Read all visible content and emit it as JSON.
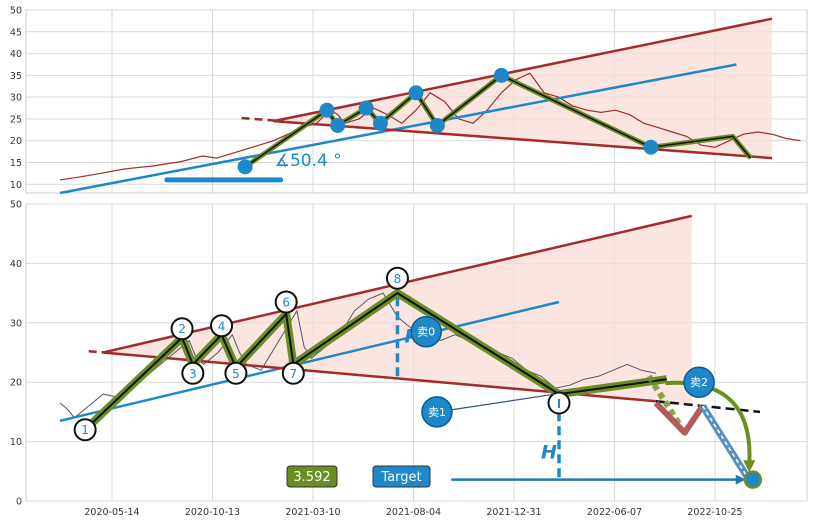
{
  "chart_data": [
    {
      "type": "line",
      "panel": "top",
      "title": "",
      "xlabel": "",
      "ylabel": "",
      "ylim": [
        8,
        50
      ],
      "y_ticks": [
        10,
        15,
        20,
        25,
        30,
        35,
        40,
        45,
        50
      ],
      "grid": true,
      "price_color": "#a52a2a",
      "price_series": [
        [
          0,
          11
        ],
        [
          0.02,
          11.5
        ],
        [
          0.05,
          12.3
        ],
        [
          0.09,
          13.5
        ],
        [
          0.13,
          14.2
        ],
        [
          0.17,
          15.2
        ],
        [
          0.2,
          16.5
        ],
        [
          0.22,
          16
        ],
        [
          0.24,
          17
        ],
        [
          0.26,
          18
        ],
        [
          0.28,
          19
        ],
        [
          0.3,
          20
        ],
        [
          0.32,
          21.5
        ],
        [
          0.34,
          23
        ],
        [
          0.36,
          24
        ],
        [
          0.38,
          27
        ],
        [
          0.39,
          26
        ],
        [
          0.4,
          24
        ],
        [
          0.42,
          25
        ],
        [
          0.44,
          27.5
        ],
        [
          0.46,
          26
        ],
        [
          0.48,
          24
        ],
        [
          0.5,
          27
        ],
        [
          0.52,
          31
        ],
        [
          0.54,
          29
        ],
        [
          0.56,
          25
        ],
        [
          0.58,
          24
        ],
        [
          0.6,
          27
        ],
        [
          0.62,
          31
        ],
        [
          0.64,
          34
        ],
        [
          0.66,
          35.5
        ],
        [
          0.68,
          31
        ],
        [
          0.7,
          30
        ],
        [
          0.72,
          28
        ],
        [
          0.74,
          27
        ],
        [
          0.76,
          26.5
        ],
        [
          0.78,
          27
        ],
        [
          0.8,
          26
        ],
        [
          0.82,
          24
        ],
        [
          0.84,
          23
        ],
        [
          0.86,
          22
        ],
        [
          0.88,
          21
        ],
        [
          0.9,
          19
        ],
        [
          0.92,
          18.5
        ],
        [
          0.94,
          20
        ],
        [
          0.96,
          21.5
        ],
        [
          0.98,
          22
        ],
        [
          1.0,
          21.5
        ],
        [
          1.02,
          20.5
        ],
        [
          1.04,
          20
        ]
      ],
      "zigzag": [
        [
          0.26,
          14
        ],
        [
          0.375,
          27
        ],
        [
          0.39,
          23.5
        ],
        [
          0.43,
          27.5
        ],
        [
          0.45,
          24
        ],
        [
          0.5,
          31
        ],
        [
          0.53,
          23.5
        ],
        [
          0.62,
          35
        ],
        [
          0.83,
          18.5
        ],
        [
          0.945,
          21
        ],
        [
          0.97,
          16
        ]
      ],
      "pivot_points": [
        [
          0.26,
          14
        ],
        [
          0.375,
          27
        ],
        [
          0.39,
          23.5
        ],
        [
          0.43,
          27.5
        ],
        [
          0.45,
          24
        ],
        [
          0.5,
          31
        ],
        [
          0.53,
          23.5
        ],
        [
          0.62,
          35
        ],
        [
          0.83,
          18.5
        ]
      ],
      "upper_line": [
        [
          0.3,
          24.5
        ],
        [
          1.0,
          48
        ]
      ],
      "lower_line": [
        [
          0.3,
          24.5
        ],
        [
          1.0,
          16
        ]
      ],
      "dash_line": [
        [
          0.255,
          25.2
        ],
        [
          0.305,
          24.6
        ]
      ],
      "trend_line": [
        [
          0.0,
          8
        ],
        [
          0.95,
          37.5
        ]
      ],
      "angle_bar": [
        [
          0.15,
          11
        ],
        [
          0.31,
          11
        ]
      ],
      "angle_label": "∡50.4 °",
      "fill_polygon": [
        [
          0.3,
          24.5
        ],
        [
          1.0,
          48
        ],
        [
          1.0,
          16
        ]
      ]
    },
    {
      "type": "line",
      "panel": "bottom",
      "title": "",
      "xlabel": "",
      "ylabel": "",
      "ylim": [
        0,
        50
      ],
      "y_ticks": [
        0,
        10,
        20,
        30,
        40,
        50
      ],
      "x_tick_labels": [
        "2020-05-14",
        "2020-10-13",
        "2021-03-10",
        "2021-08-04",
        "2021-12-31",
        "2022-06-07",
        "2022-10-25"
      ],
      "grid": true,
      "price_color": "#555566",
      "price_series": [
        [
          0,
          16.5
        ],
        [
          0.01,
          15.5
        ],
        [
          0.02,
          14
        ],
        [
          0.04,
          16
        ],
        [
          0.06,
          18
        ],
        [
          0.08,
          17.5
        ],
        [
          0.1,
          19
        ],
        [
          0.12,
          21
        ],
        [
          0.14,
          23
        ],
        [
          0.16,
          25
        ],
        [
          0.18,
          27
        ],
        [
          0.19,
          24
        ],
        [
          0.2,
          23
        ],
        [
          0.22,
          25
        ],
        [
          0.24,
          28
        ],
        [
          0.25,
          25
        ],
        [
          0.26,
          23
        ],
        [
          0.28,
          22
        ],
        [
          0.3,
          26
        ],
        [
          0.32,
          30
        ],
        [
          0.33,
          32
        ],
        [
          0.34,
          26
        ],
        [
          0.35,
          24
        ],
        [
          0.37,
          26
        ],
        [
          0.39,
          28
        ],
        [
          0.41,
          32
        ],
        [
          0.43,
          34
        ],
        [
          0.45,
          35
        ],
        [
          0.47,
          31
        ],
        [
          0.49,
          29
        ],
        [
          0.51,
          28
        ],
        [
          0.53,
          27
        ],
        [
          0.55,
          28
        ],
        [
          0.57,
          27
        ],
        [
          0.59,
          26
        ],
        [
          0.61,
          25
        ],
        [
          0.63,
          24
        ],
        [
          0.65,
          22
        ],
        [
          0.67,
          21
        ],
        [
          0.69,
          19
        ],
        [
          0.71,
          19.5
        ],
        [
          0.73,
          20.5
        ],
        [
          0.75,
          21
        ],
        [
          0.77,
          22
        ],
        [
          0.79,
          23
        ],
        [
          0.81,
          22
        ],
        [
          0.83,
          21.5
        ]
      ],
      "zigzag": [
        [
          0.035,
          12
        ],
        [
          0.17,
          27.5
        ],
        [
          0.185,
          23
        ],
        [
          0.225,
          28
        ],
        [
          0.245,
          22.5
        ],
        [
          0.315,
          31.5
        ],
        [
          0.325,
          23
        ],
        [
          0.47,
          35
        ],
        [
          0.695,
          18
        ],
        [
          0.845,
          20.5
        ]
      ],
      "pivots": [
        {
          "x": 0.035,
          "y": 12,
          "label": "1"
        },
        {
          "x": 0.17,
          "y": 29,
          "label": "2"
        },
        {
          "x": 0.185,
          "y": 21.5,
          "label": "3"
        },
        {
          "x": 0.225,
          "y": 29.5,
          "label": "4"
        },
        {
          "x": 0.245,
          "y": 21.5,
          "label": "5"
        },
        {
          "x": 0.315,
          "y": 33.5,
          "label": "6"
        },
        {
          "x": 0.325,
          "y": 21.5,
          "label": "7"
        },
        {
          "x": 0.47,
          "y": 37.5,
          "label": "8"
        },
        {
          "x": 0.695,
          "y": 16.5,
          "label": ""
        }
      ],
      "upper_line": [
        [
          0.06,
          25
        ],
        [
          0.88,
          48
        ]
      ],
      "lower_line": [
        [
          0.06,
          25
        ],
        [
          0.975,
          15
        ]
      ],
      "upper_dash": [
        [
          0.04,
          25.2
        ],
        [
          0.075,
          24.9
        ]
      ],
      "lower_dash": [
        [
          0.83,
          16.8
        ],
        [
          0.975,
          15
        ]
      ],
      "trend_line": [
        [
          0.0,
          13.5
        ],
        [
          0.695,
          33.5
        ]
      ],
      "fill_polygon": [
        [
          0.06,
          25
        ],
        [
          0.88,
          48
        ],
        [
          0.88,
          16
        ]
      ],
      "projection_green": [
        [
          0.82,
          21
        ],
        [
          0.865,
          12.5
        ]
      ],
      "projection_red": [
        [
          0.83,
          16.5
        ],
        [
          0.87,
          11.5
        ],
        [
          0.895,
          16
        ]
      ],
      "projection_blue": [
        [
          0.895,
          16
        ],
        [
          0.96,
          3.5
        ]
      ],
      "curved_arrow": {
        "from": [
          0.885,
          19.5
        ],
        "to": [
          0.96,
          4.5
        ]
      },
      "height_bar_1": {
        "x": 0.47,
        "y1": 21,
        "y2": 35,
        "label": "H"
      },
      "height_bar_2": {
        "x": 0.695,
        "y1": 4,
        "y2": 17,
        "label": "H"
      },
      "markers": [
        {
          "label": "卖0",
          "x": 0.51,
          "y": 28.5
        },
        {
          "label": "卖1",
          "x": 0.525,
          "y": 15
        },
        {
          "label": "卖2",
          "x": 0.89,
          "y": 20
        }
      ],
      "target_marker": {
        "x": 0.965,
        "y": 3.6
      },
      "target_arrow": [
        [
          0.545,
          3.6
        ],
        [
          0.955,
          3.6
        ]
      ],
      "value_label": "3.592",
      "target_label": "Target",
      "colors": {
        "channel": "#a52a2a",
        "trend": "#1e88c9",
        "zigzag_outline": "#111111",
        "zigzag_fill": "#6b8e23",
        "fill": "#f8dcd6",
        "box_green": "#6b8e23",
        "box_blue": "#1e88c9"
      }
    }
  ]
}
